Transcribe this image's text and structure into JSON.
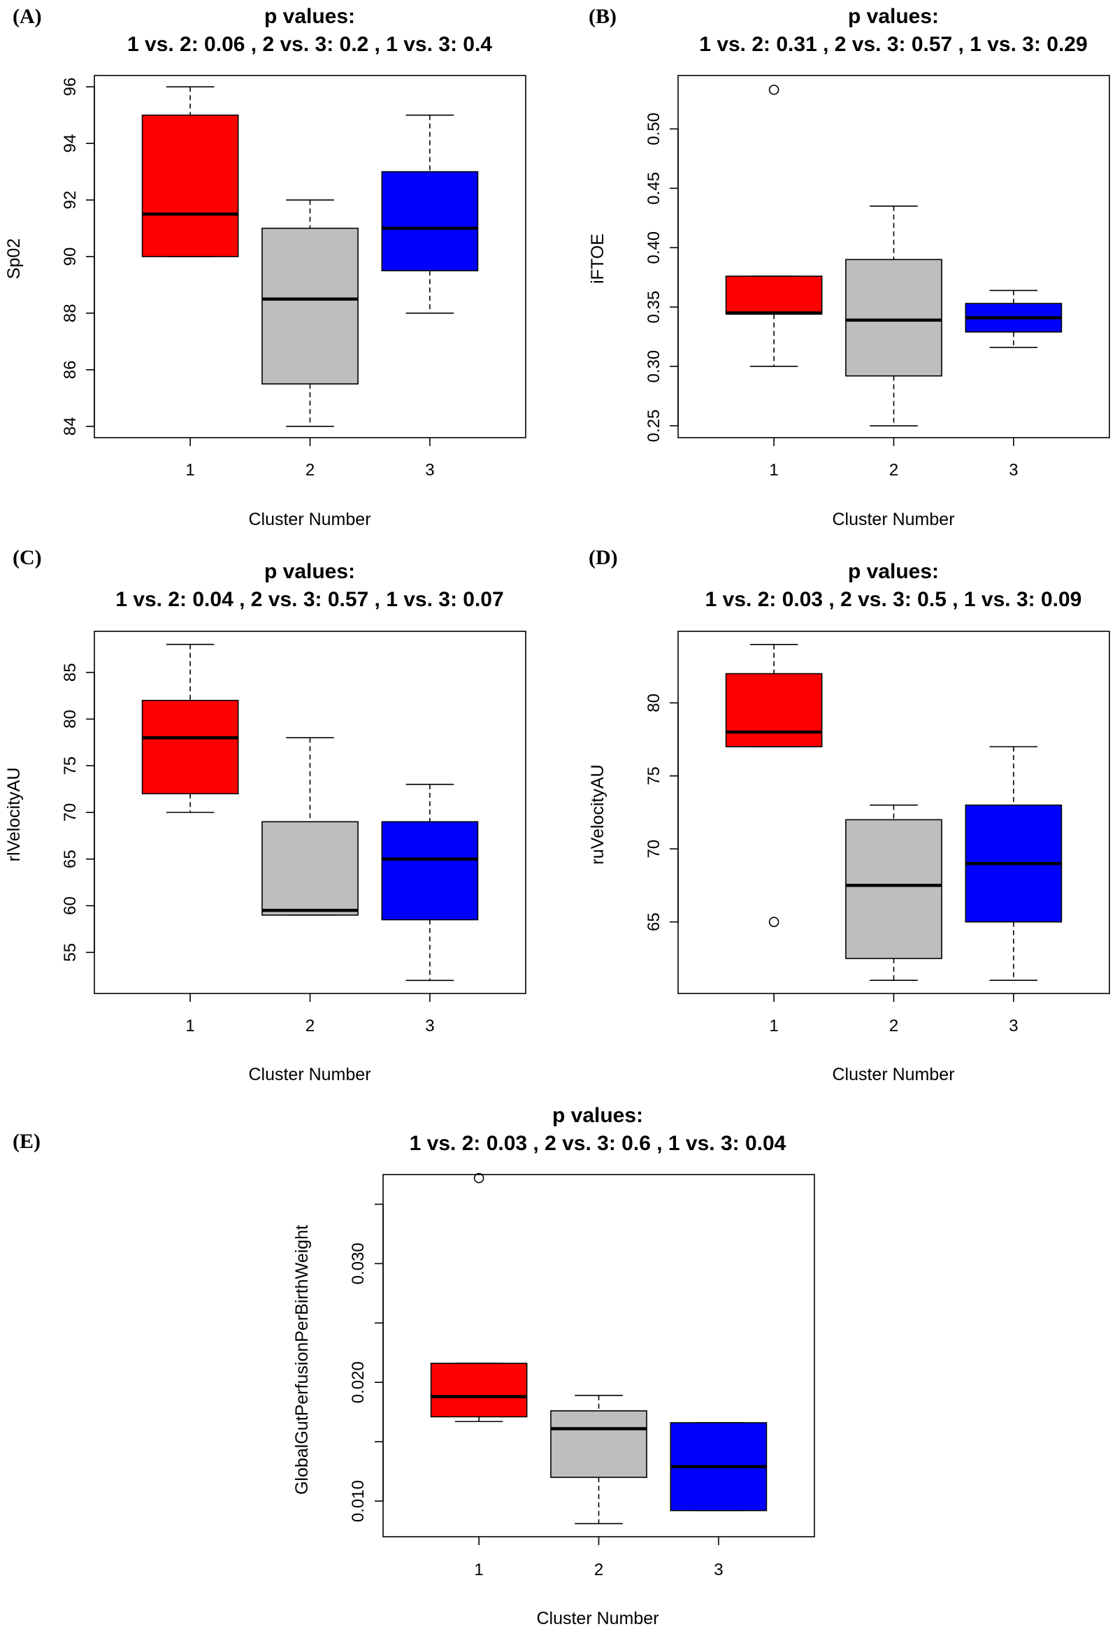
{
  "chart_data": [
    {
      "panel": "(A)",
      "type": "boxplot",
      "title": "p values:",
      "subtitle": "1 vs. 2: 0.06 , 2 vs. 3: 0.2 , 1 vs. 3:  0.4",
      "xlabel": "Cluster Number",
      "ylabel": "Sp02",
      "categories": [
        "1",
        "2",
        "3"
      ],
      "ylim": [
        83.6,
        96.4
      ],
      "yticks": [
        84,
        86,
        88,
        90,
        92,
        94,
        96
      ],
      "ytick_labels": [
        "84",
        "86",
        "88",
        "90",
        "92",
        "94",
        "96"
      ],
      "boxes": [
        {
          "whisker_low": 90,
          "q1": 90,
          "median": 91.5,
          "q3": 95,
          "whisker_high": 96,
          "outliers": [],
          "color": "#ff0000"
        },
        {
          "whisker_low": 84,
          "q1": 85.5,
          "median": 88.5,
          "q3": 91,
          "whisker_high": 92,
          "outliers": [],
          "color": "#bebebe"
        },
        {
          "whisker_low": 88,
          "q1": 89.5,
          "median": 91,
          "q3": 93,
          "whisker_high": 95,
          "outliers": [],
          "color": "#0000ff"
        }
      ]
    },
    {
      "panel": "(B)",
      "type": "boxplot",
      "title": "p values:",
      "subtitle": "1 vs. 2: 0.31 , 2 vs. 3: 0.57 , 1 vs. 3:  0.29",
      "xlabel": "Cluster Number",
      "ylabel": "iFTOE",
      "categories": [
        "1",
        "2",
        "3"
      ],
      "ylim": [
        0.24,
        0.545
      ],
      "yticks": [
        0.25,
        0.3,
        0.35,
        0.4,
        0.45,
        0.5
      ],
      "ytick_labels": [
        "0.25",
        "0.30",
        "0.35",
        "0.40",
        "0.45",
        "0.50"
      ],
      "boxes": [
        {
          "whisker_low": 0.3,
          "q1": 0.344,
          "median": 0.345,
          "q3": 0.376,
          "whisker_high": 0.376,
          "outliers": [
            0.533
          ],
          "color": "#ff0000"
        },
        {
          "whisker_low": 0.25,
          "q1": 0.292,
          "median": 0.339,
          "q3": 0.39,
          "whisker_high": 0.435,
          "outliers": [],
          "color": "#bebebe"
        },
        {
          "whisker_low": 0.316,
          "q1": 0.329,
          "median": 0.341,
          "q3": 0.353,
          "whisker_high": 0.364,
          "outliers": [],
          "color": "#0000ff"
        }
      ]
    },
    {
      "panel": "(C)",
      "type": "boxplot",
      "title": "p values:",
      "subtitle": "1 vs. 2: 0.04 , 2 vs. 3: 0.57 , 1 vs. 3:  0.07",
      "xlabel": "Cluster Number",
      "ylabel": "rlVelocityAU",
      "categories": [
        "1",
        "2",
        "3"
      ],
      "ylim": [
        50.6,
        89.4
      ],
      "yticks": [
        55,
        60,
        65,
        70,
        75,
        80,
        85
      ],
      "ytick_labels": [
        "55",
        "60",
        "65",
        "70",
        "75",
        "80",
        "85"
      ],
      "boxes": [
        {
          "whisker_low": 70,
          "q1": 72,
          "median": 78,
          "q3": 82,
          "whisker_high": 88,
          "outliers": [],
          "color": "#ff0000"
        },
        {
          "whisker_low": 59,
          "q1": 59,
          "median": 59.5,
          "q3": 69,
          "whisker_high": 78,
          "outliers": [],
          "color": "#bebebe"
        },
        {
          "whisker_low": 52,
          "q1": 58.5,
          "median": 65,
          "q3": 69,
          "whisker_high": 73,
          "outliers": [],
          "color": "#0000ff"
        }
      ]
    },
    {
      "panel": "(D)",
      "type": "boxplot",
      "title": "p values:",
      "subtitle": "1 vs. 2: 0.03 , 2 vs. 3: 0.5 , 1 vs. 3:  0.09",
      "xlabel": "Cluster Number",
      "ylabel": "ruVelocityAU",
      "categories": [
        "1",
        "2",
        "3"
      ],
      "ylim": [
        60.1,
        84.9
      ],
      "yticks": [
        65,
        70,
        75,
        80
      ],
      "ytick_labels": [
        "65",
        "70",
        "75",
        "80"
      ],
      "boxes": [
        {
          "whisker_low": 77,
          "q1": 77,
          "median": 78,
          "q3": 82,
          "whisker_high": 84,
          "outliers": [
            65
          ],
          "color": "#ff0000"
        },
        {
          "whisker_low": 61,
          "q1": 62.5,
          "median": 67.5,
          "q3": 72,
          "whisker_high": 73,
          "outliers": [],
          "color": "#bebebe"
        },
        {
          "whisker_low": 61,
          "q1": 65,
          "median": 69,
          "q3": 73,
          "whisker_high": 77,
          "outliers": [],
          "color": "#0000ff"
        }
      ]
    },
    {
      "panel": "(E)",
      "type": "boxplot",
      "title": "p values:",
      "subtitle": "1 vs. 2: 0.03 , 2 vs. 3: 0.6 , 1 vs. 3:  0.04",
      "xlabel": "Cluster Number",
      "ylabel": "GlobalGutPerfusionPerBirthWeight",
      "categories": [
        "1",
        "2",
        "3"
      ],
      "ylim": [
        0.007,
        0.0375
      ],
      "yticks": [
        0.01,
        0.015,
        0.02,
        0.025,
        0.03,
        0.035
      ],
      "ytick_labels": [
        "0.010",
        "",
        "0.020",
        "",
        "0.030",
        ""
      ],
      "boxes": [
        {
          "whisker_low": 0.0167,
          "q1": 0.0171,
          "median": 0.0188,
          "q3": 0.0216,
          "whisker_high": 0.0216,
          "outliers": [
            0.0372
          ],
          "color": "#ff0000"
        },
        {
          "whisker_low": 0.0081,
          "q1": 0.012,
          "median": 0.0161,
          "q3": 0.0176,
          "whisker_high": 0.0189,
          "outliers": [],
          "color": "#bebebe"
        },
        {
          "whisker_low": 0.0092,
          "q1": 0.0092,
          "median": 0.0129,
          "q3": 0.0166,
          "whisker_high": 0.0166,
          "outliers": [],
          "color": "#0000ff"
        }
      ]
    }
  ]
}
